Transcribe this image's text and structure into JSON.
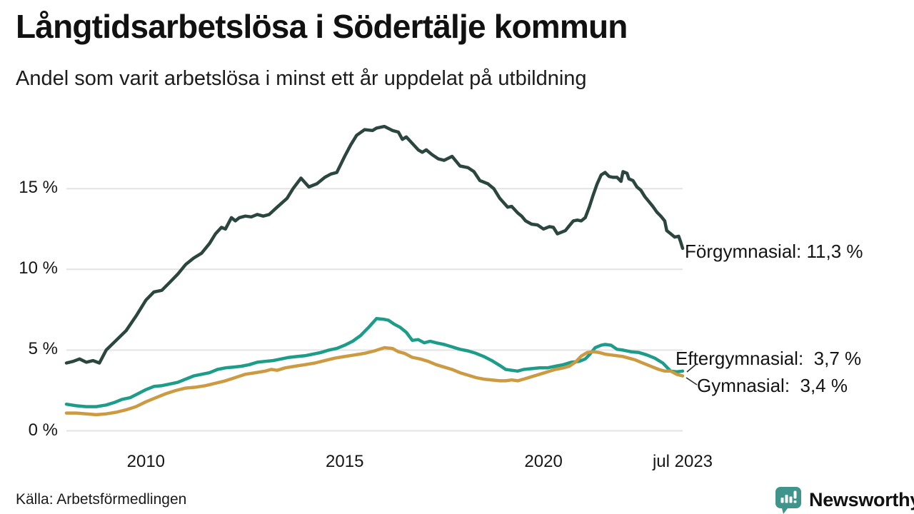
{
  "title": "Långtidsarbetslösa i Södertälje kommun",
  "subtitle": "Andel som varit arbetslösa i minst ett år uppdelat på utbildning",
  "source": "Källa: Arbetsförmedlingen",
  "branding": {
    "wordmark": "Newsworthy",
    "logo_icon": "bar-chart-speech-bubble",
    "color": "#3f948b"
  },
  "colors": {
    "background": "#ffffff",
    "gridline": "#e3e3e3",
    "text": "#161616",
    "connector": "#2b2b2b"
  },
  "chart_data": {
    "type": "line",
    "title": "Långtidsarbetslösa i Södertälje kommun",
    "subtitle": "Andel som varit arbetslösa i minst ett år uppdelat på utbildning",
    "unit": "%",
    "grid": "horizontal-only",
    "legend_position": "end-of-line-labels-right",
    "x_axis": {
      "range": [
        2008,
        2023.5
      ],
      "ticks": [
        {
          "label": "2010",
          "value": 2010
        },
        {
          "label": "2015",
          "value": 2015
        },
        {
          "label": "2020",
          "value": 2020
        },
        {
          "label": "jul 2023",
          "value": 2023.5
        }
      ]
    },
    "y_axis": {
      "range": [
        0,
        20
      ],
      "ticks": [
        {
          "label": "15 %",
          "value": 15
        },
        {
          "label": "10 %",
          "value": 10
        },
        {
          "label": "5 %",
          "value": 5
        },
        {
          "label": "0 %",
          "value": 0
        }
      ]
    },
    "series": [
      {
        "name": "Förgymnasial",
        "color": "#2a463e",
        "end_value": 11.3,
        "end_label": "Förgymnasial: 11,3 %",
        "points": [
          [
            2008.0,
            4.2
          ],
          [
            2008.17,
            4.3
          ],
          [
            2008.33,
            4.45
          ],
          [
            2008.5,
            4.25
          ],
          [
            2008.67,
            4.35
          ],
          [
            2008.83,
            4.2
          ],
          [
            2009.0,
            5.0
          ],
          [
            2009.25,
            5.6
          ],
          [
            2009.5,
            6.2
          ],
          [
            2009.75,
            7.1
          ],
          [
            2010.0,
            8.1
          ],
          [
            2010.2,
            8.6
          ],
          [
            2010.4,
            8.7
          ],
          [
            2010.6,
            9.2
          ],
          [
            2010.8,
            9.7
          ],
          [
            2011.0,
            10.3
          ],
          [
            2011.2,
            10.7
          ],
          [
            2011.4,
            11.0
          ],
          [
            2011.6,
            11.6
          ],
          [
            2011.75,
            12.2
          ],
          [
            2011.9,
            12.6
          ],
          [
            2012.0,
            12.5
          ],
          [
            2012.15,
            13.2
          ],
          [
            2012.25,
            13.0
          ],
          [
            2012.35,
            13.2
          ],
          [
            2012.5,
            13.3
          ],
          [
            2012.65,
            13.25
          ],
          [
            2012.8,
            13.4
          ],
          [
            2012.95,
            13.3
          ],
          [
            2013.1,
            13.4
          ],
          [
            2013.3,
            13.85
          ],
          [
            2013.55,
            14.4
          ],
          [
            2013.7,
            15.0
          ],
          [
            2013.9,
            15.65
          ],
          [
            2014.1,
            15.1
          ],
          [
            2014.3,
            15.3
          ],
          [
            2014.5,
            15.7
          ],
          [
            2014.65,
            15.9
          ],
          [
            2014.8,
            16.0
          ],
          [
            2014.9,
            16.5
          ],
          [
            2015.0,
            17.0
          ],
          [
            2015.15,
            17.7
          ],
          [
            2015.3,
            18.3
          ],
          [
            2015.5,
            18.65
          ],
          [
            2015.7,
            18.6
          ],
          [
            2015.8,
            18.75
          ],
          [
            2016.0,
            18.85
          ],
          [
            2016.2,
            18.6
          ],
          [
            2016.35,
            18.5
          ],
          [
            2016.45,
            18.05
          ],
          [
            2016.55,
            18.2
          ],
          [
            2016.7,
            17.8
          ],
          [
            2016.85,
            17.4
          ],
          [
            2016.95,
            17.25
          ],
          [
            2017.05,
            17.4
          ],
          [
            2017.2,
            17.1
          ],
          [
            2017.35,
            16.85
          ],
          [
            2017.5,
            16.75
          ],
          [
            2017.7,
            17.0
          ],
          [
            2017.9,
            16.4
          ],
          [
            2018.1,
            16.3
          ],
          [
            2018.25,
            16.05
          ],
          [
            2018.4,
            15.5
          ],
          [
            2018.6,
            15.3
          ],
          [
            2018.75,
            15.0
          ],
          [
            2018.9,
            14.4
          ],
          [
            2019.1,
            13.85
          ],
          [
            2019.2,
            13.9
          ],
          [
            2019.35,
            13.5
          ],
          [
            2019.45,
            13.3
          ],
          [
            2019.55,
            13.0
          ],
          [
            2019.7,
            12.8
          ],
          [
            2019.85,
            12.75
          ],
          [
            2020.0,
            12.5
          ],
          [
            2020.15,
            12.65
          ],
          [
            2020.25,
            12.6
          ],
          [
            2020.35,
            12.2
          ],
          [
            2020.45,
            12.3
          ],
          [
            2020.55,
            12.4
          ],
          [
            2020.65,
            12.7
          ],
          [
            2020.75,
            13.0
          ],
          [
            2020.85,
            13.05
          ],
          [
            2020.95,
            13.0
          ],
          [
            2021.05,
            13.2
          ],
          [
            2021.15,
            13.85
          ],
          [
            2021.25,
            14.6
          ],
          [
            2021.35,
            15.3
          ],
          [
            2021.45,
            15.85
          ],
          [
            2021.55,
            16.0
          ],
          [
            2021.65,
            15.75
          ],
          [
            2021.75,
            15.7
          ],
          [
            2021.85,
            15.7
          ],
          [
            2021.95,
            15.45
          ],
          [
            2022.0,
            16.05
          ],
          [
            2022.1,
            15.95
          ],
          [
            2022.15,
            15.6
          ],
          [
            2022.25,
            15.5
          ],
          [
            2022.35,
            15.1
          ],
          [
            2022.45,
            14.9
          ],
          [
            2022.55,
            14.5
          ],
          [
            2022.65,
            14.2
          ],
          [
            2022.75,
            13.9
          ],
          [
            2022.85,
            13.55
          ],
          [
            2022.95,
            13.3
          ],
          [
            2023.05,
            13.0
          ],
          [
            2023.1,
            12.4
          ],
          [
            2023.2,
            12.2
          ],
          [
            2023.3,
            12.0
          ],
          [
            2023.4,
            12.05
          ],
          [
            2023.45,
            11.7
          ],
          [
            2023.5,
            11.3
          ]
        ]
      },
      {
        "name": "Eftergymnasial",
        "color": "#1d9d89",
        "end_value": 3.7,
        "end_label": "Eftergymnasial:  3,7 %",
        "points": [
          [
            2008.0,
            1.65
          ],
          [
            2008.25,
            1.55
          ],
          [
            2008.5,
            1.5
          ],
          [
            2008.75,
            1.5
          ],
          [
            2009.0,
            1.6
          ],
          [
            2009.2,
            1.75
          ],
          [
            2009.4,
            1.95
          ],
          [
            2009.6,
            2.05
          ],
          [
            2009.8,
            2.3
          ],
          [
            2010.0,
            2.55
          ],
          [
            2010.2,
            2.75
          ],
          [
            2010.4,
            2.8
          ],
          [
            2010.6,
            2.9
          ],
          [
            2010.8,
            3.0
          ],
          [
            2011.0,
            3.2
          ],
          [
            2011.2,
            3.4
          ],
          [
            2011.4,
            3.5
          ],
          [
            2011.6,
            3.6
          ],
          [
            2011.8,
            3.8
          ],
          [
            2012.0,
            3.9
          ],
          [
            2012.2,
            3.95
          ],
          [
            2012.4,
            4.0
          ],
          [
            2012.6,
            4.1
          ],
          [
            2012.8,
            4.25
          ],
          [
            2013.0,
            4.3
          ],
          [
            2013.2,
            4.35
          ],
          [
            2013.4,
            4.45
          ],
          [
            2013.6,
            4.55
          ],
          [
            2013.8,
            4.6
          ],
          [
            2014.0,
            4.65
          ],
          [
            2014.2,
            4.75
          ],
          [
            2014.4,
            4.85
          ],
          [
            2014.6,
            5.0
          ],
          [
            2014.8,
            5.1
          ],
          [
            2015.0,
            5.3
          ],
          [
            2015.2,
            5.55
          ],
          [
            2015.4,
            5.9
          ],
          [
            2015.6,
            6.4
          ],
          [
            2015.8,
            6.95
          ],
          [
            2016.0,
            6.9
          ],
          [
            2016.1,
            6.85
          ],
          [
            2016.25,
            6.6
          ],
          [
            2016.4,
            6.4
          ],
          [
            2016.55,
            6.1
          ],
          [
            2016.7,
            5.6
          ],
          [
            2016.85,
            5.65
          ],
          [
            2017.0,
            5.45
          ],
          [
            2017.15,
            5.55
          ],
          [
            2017.3,
            5.45
          ],
          [
            2017.5,
            5.35
          ],
          [
            2017.7,
            5.2
          ],
          [
            2017.9,
            5.05
          ],
          [
            2018.1,
            4.95
          ],
          [
            2018.3,
            4.8
          ],
          [
            2018.5,
            4.6
          ],
          [
            2018.7,
            4.35
          ],
          [
            2018.9,
            4.05
          ],
          [
            2019.05,
            3.8
          ],
          [
            2019.2,
            3.75
          ],
          [
            2019.35,
            3.7
          ],
          [
            2019.5,
            3.8
          ],
          [
            2019.7,
            3.85
          ],
          [
            2019.9,
            3.9
          ],
          [
            2020.1,
            3.9
          ],
          [
            2020.3,
            4.0
          ],
          [
            2020.5,
            4.1
          ],
          [
            2020.7,
            4.25
          ],
          [
            2020.9,
            4.3
          ],
          [
            2021.05,
            4.45
          ],
          [
            2021.15,
            4.7
          ],
          [
            2021.3,
            5.15
          ],
          [
            2021.45,
            5.3
          ],
          [
            2021.55,
            5.35
          ],
          [
            2021.7,
            5.3
          ],
          [
            2021.85,
            5.05
          ],
          [
            2022.0,
            5.0
          ],
          [
            2022.2,
            4.9
          ],
          [
            2022.4,
            4.85
          ],
          [
            2022.6,
            4.7
          ],
          [
            2022.8,
            4.5
          ],
          [
            2023.0,
            4.2
          ],
          [
            2023.1,
            3.95
          ],
          [
            2023.2,
            3.7
          ],
          [
            2023.35,
            3.65
          ],
          [
            2023.5,
            3.7
          ]
        ]
      },
      {
        "name": "Gymnasial",
        "color": "#cc9a41",
        "end_value": 3.4,
        "end_label": "Gymnasial:  3,4 %",
        "points": [
          [
            2008.0,
            1.1
          ],
          [
            2008.25,
            1.1
          ],
          [
            2008.5,
            1.05
          ],
          [
            2008.75,
            1.0
          ],
          [
            2009.0,
            1.05
          ],
          [
            2009.25,
            1.15
          ],
          [
            2009.5,
            1.3
          ],
          [
            2009.75,
            1.5
          ],
          [
            2010.0,
            1.8
          ],
          [
            2010.25,
            2.05
          ],
          [
            2010.5,
            2.3
          ],
          [
            2010.75,
            2.5
          ],
          [
            2011.0,
            2.65
          ],
          [
            2011.25,
            2.7
          ],
          [
            2011.5,
            2.8
          ],
          [
            2011.75,
            2.95
          ],
          [
            2012.0,
            3.1
          ],
          [
            2012.25,
            3.3
          ],
          [
            2012.5,
            3.5
          ],
          [
            2012.75,
            3.6
          ],
          [
            2013.0,
            3.7
          ],
          [
            2013.15,
            3.8
          ],
          [
            2013.3,
            3.75
          ],
          [
            2013.5,
            3.9
          ],
          [
            2013.75,
            4.0
          ],
          [
            2014.0,
            4.1
          ],
          [
            2014.25,
            4.2
          ],
          [
            2014.5,
            4.35
          ],
          [
            2014.75,
            4.5
          ],
          [
            2015.0,
            4.6
          ],
          [
            2015.25,
            4.7
          ],
          [
            2015.5,
            4.8
          ],
          [
            2015.75,
            4.95
          ],
          [
            2016.0,
            5.15
          ],
          [
            2016.2,
            5.1
          ],
          [
            2016.35,
            4.9
          ],
          [
            2016.5,
            4.8
          ],
          [
            2016.7,
            4.55
          ],
          [
            2016.9,
            4.45
          ],
          [
            2017.1,
            4.3
          ],
          [
            2017.3,
            4.1
          ],
          [
            2017.5,
            3.95
          ],
          [
            2017.7,
            3.8
          ],
          [
            2017.9,
            3.6
          ],
          [
            2018.1,
            3.45
          ],
          [
            2018.3,
            3.3
          ],
          [
            2018.5,
            3.2
          ],
          [
            2018.7,
            3.15
          ],
          [
            2018.9,
            3.1
          ],
          [
            2019.05,
            3.1
          ],
          [
            2019.2,
            3.15
          ],
          [
            2019.35,
            3.1
          ],
          [
            2019.5,
            3.2
          ],
          [
            2019.7,
            3.35
          ],
          [
            2019.9,
            3.5
          ],
          [
            2020.1,
            3.65
          ],
          [
            2020.3,
            3.8
          ],
          [
            2020.5,
            3.9
          ],
          [
            2020.65,
            4.0
          ],
          [
            2020.8,
            4.25
          ],
          [
            2020.95,
            4.63
          ],
          [
            2021.1,
            4.85
          ],
          [
            2021.25,
            4.9
          ],
          [
            2021.4,
            4.85
          ],
          [
            2021.55,
            4.75
          ],
          [
            2021.7,
            4.7
          ],
          [
            2021.85,
            4.65
          ],
          [
            2022.0,
            4.6
          ],
          [
            2022.15,
            4.5
          ],
          [
            2022.3,
            4.4
          ],
          [
            2022.45,
            4.25
          ],
          [
            2022.6,
            4.1
          ],
          [
            2022.75,
            3.95
          ],
          [
            2022.9,
            3.8
          ],
          [
            2023.05,
            3.7
          ],
          [
            2023.2,
            3.7
          ],
          [
            2023.35,
            3.5
          ],
          [
            2023.5,
            3.4
          ]
        ]
      }
    ]
  }
}
